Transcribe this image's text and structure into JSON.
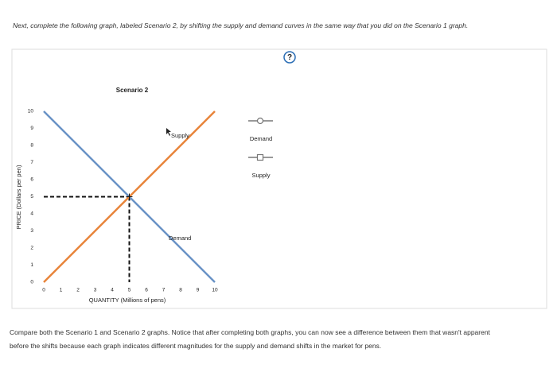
{
  "intro": "Next, complete the following graph, labeled Scenario 2, by shifting the supply and demand curves in the same way that you did on the Scenario 1 graph.",
  "help_icon": "?",
  "chart_data": {
    "type": "line",
    "title": "Scenario 2",
    "x_label": "QUANTITY (Millions of pens)",
    "y_label": "PRICE (Dollars per pen)",
    "x": [
      0,
      10
    ],
    "series": [
      {
        "name": "Demand",
        "color": "#6a93c6",
        "values": [
          10,
          0
        ]
      },
      {
        "name": "Supply",
        "color": "#e8843a",
        "values": [
          0,
          10
        ]
      }
    ],
    "dashed_point": {
      "x": 5,
      "y": 5
    },
    "xlim": [
      0,
      10
    ],
    "ylim": [
      0,
      10
    ],
    "xticks": [
      0,
      1,
      2,
      3,
      4,
      5,
      6,
      7,
      8,
      9,
      10
    ],
    "yticks": [
      0,
      1,
      2,
      3,
      4,
      5,
      6,
      7,
      8,
      9,
      10
    ]
  },
  "outro": "Compare both the Scenario 1 and Scenario 2 graphs. Notice that after completing both graphs, you can now see a difference between them that wasn't apparent before the shifts because each graph indicates different magnitudes for the supply and demand shifts in the market for pens."
}
